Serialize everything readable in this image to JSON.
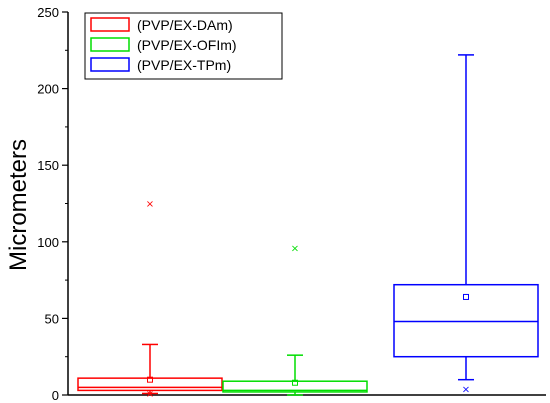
{
  "chart_data": {
    "type": "box",
    "ylabel": "Micrometers",
    "ylim": [
      0,
      250
    ],
    "yticks": [
      0,
      50,
      100,
      150,
      200,
      250
    ],
    "grid": false,
    "legend_position": "top-left",
    "series": [
      {
        "name": "(PVP/EX-DAm)",
        "color": "#ff0000",
        "whisker_low": 1,
        "q1": 3,
        "median": 5,
        "q3": 11,
        "whisker_high": 33,
        "mean": 10,
        "outliers": [
          125,
          1
        ],
        "outlier_marker": "×"
      },
      {
        "name": "(PVP/EX-OFIm)",
        "color": "#00dd00",
        "whisker_low": 0,
        "q1": 2,
        "median": 3,
        "q3": 9,
        "whisker_high": 26,
        "mean": 8,
        "outliers": [
          96
        ],
        "outlier_marker": "×"
      },
      {
        "name": "(PVP/EX-TPm)",
        "color": "#0000ff",
        "whisker_low": 10,
        "q1": 25,
        "median": 48,
        "q3": 72,
        "whisker_high": 222,
        "mean": 64,
        "outliers": [
          4
        ],
        "outlier_marker": "×"
      }
    ]
  }
}
